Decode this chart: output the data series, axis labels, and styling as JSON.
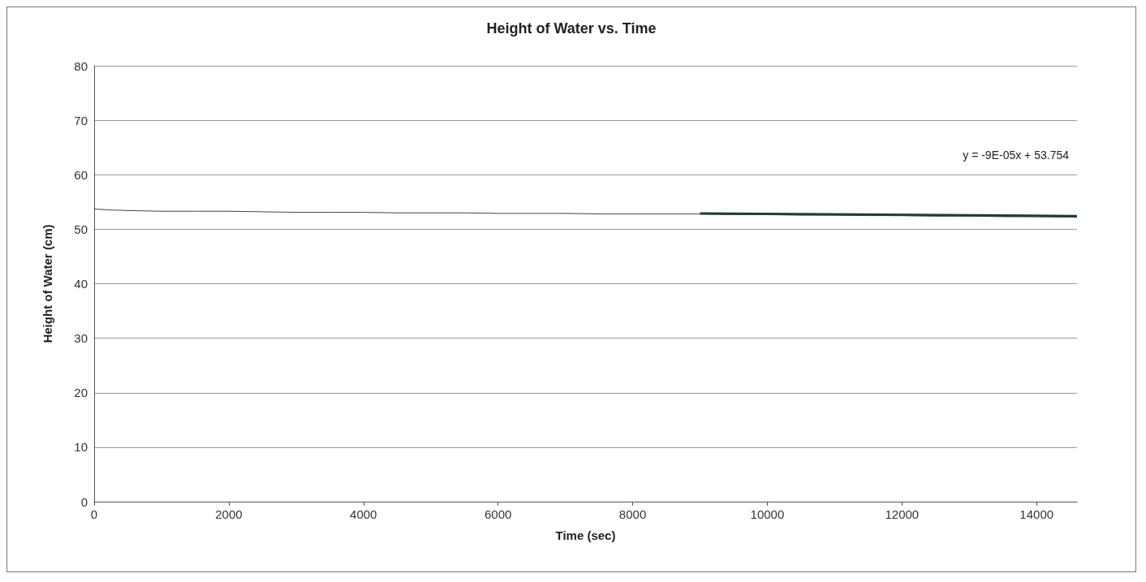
{
  "chart_data": {
    "type": "line",
    "title": "Height of Water vs. Time",
    "xlabel": "Time (sec)",
    "ylabel": "Height of Water (cm)",
    "series": [
      {
        "color": "#444444",
        "x": [
          0,
          300,
          600,
          1000,
          1500,
          2000,
          2500,
          3000,
          3500,
          4000,
          4500,
          5000,
          5500,
          6000,
          6500,
          7000,
          7500,
          8000,
          8500,
          9000,
          9500,
          10000,
          10500,
          11000,
          11500,
          12000,
          12500,
          13000,
          13500,
          14000,
          14600
        ],
        "values": [
          53.7,
          53.5,
          53.4,
          53.3,
          53.3,
          53.3,
          53.2,
          53.1,
          53.1,
          53.1,
          53.0,
          53.0,
          53.0,
          52.9,
          52.9,
          52.9,
          52.8,
          52.8,
          52.8,
          52.8,
          52.7,
          52.7,
          52.6,
          52.6,
          52.5,
          52.5,
          52.4,
          52.4,
          52.3,
          52.3,
          52.2
        ]
      },
      {
        "type": "line",
        "color": "#1e3d3d",
        "x": [
          9000,
          14600
        ],
        "values": [
          52.9,
          52.4
        ]
      }
    ],
    "annotations": [
      "y = -9E-05x + 53.754"
    ],
    "xlim": [
      0,
      14600
    ],
    "xticks": [
      0,
      2000,
      4000,
      6000,
      8000,
      10000,
      12000,
      14000
    ],
    "ylim": [
      0,
      80
    ],
    "yticks": [
      0,
      10,
      20,
      30,
      40,
      50,
      60,
      70,
      80
    ],
    "grid": "y",
    "marker": "none",
    "line_style": "solid"
  }
}
